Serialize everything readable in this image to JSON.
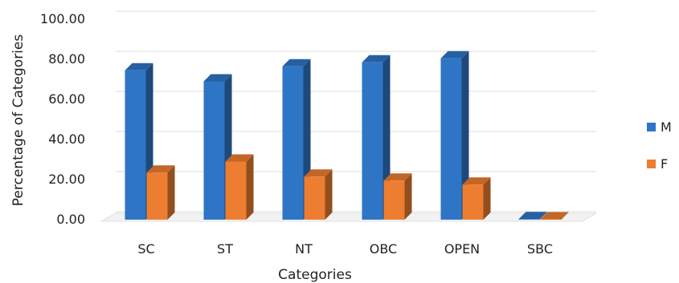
{
  "chart_data": {
    "type": "bar",
    "categories": [
      "SC",
      "ST",
      "NT",
      "OBC",
      "OPEN",
      "SBC"
    ],
    "series": [
      {
        "name": "M",
        "values": [
          74.5,
          69.0,
          76.5,
          78.5,
          80.5,
          0.3
        ],
        "color": "#2e75c6"
      },
      {
        "name": "F",
        "values": [
          23.5,
          29.0,
          21.5,
          19.5,
          17.5,
          0.2
        ],
        "color": "#ed7d31"
      }
    ],
    "yticks": [
      "0.00",
      "20.00",
      "40.00",
      "60.00",
      "80.00",
      "100.00"
    ],
    "ylim": [
      0,
      100
    ],
    "xlabel": "Categories",
    "ylabel": "Percentage of Categories",
    "legend_position": "right",
    "grid": true,
    "style": "3d-column"
  }
}
